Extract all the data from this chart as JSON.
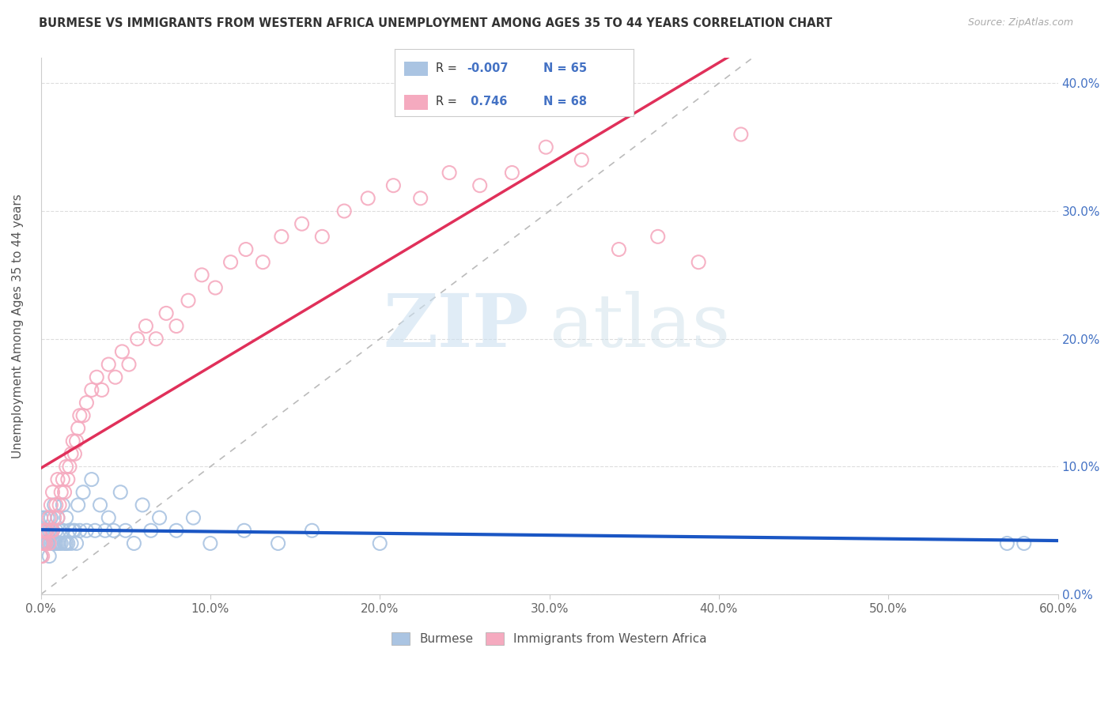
{
  "title": "BURMESE VS IMMIGRANTS FROM WESTERN AFRICA UNEMPLOYMENT AMONG AGES 35 TO 44 YEARS CORRELATION CHART",
  "source": "Source: ZipAtlas.com",
  "ylabel_label": "Unemployment Among Ages 35 to 44 years",
  "legend_labels": [
    "Burmese",
    "Immigrants from Western Africa"
  ],
  "legend_R": [
    -0.007,
    0.746
  ],
  "legend_N": [
    65,
    68
  ],
  "burmese_color": "#aac4e2",
  "western_africa_color": "#f5aabf",
  "burmese_line_color": "#1a56c4",
  "western_africa_line_color": "#e0305a",
  "ref_line_color": "#bbbbbb",
  "background_color": "#ffffff",
  "watermark_zip": "ZIP",
  "watermark_atlas": "atlas",
  "xlim": [
    0.0,
    0.6
  ],
  "ylim": [
    0.0,
    0.42
  ],
  "xtick_vals": [
    0.0,
    0.1,
    0.2,
    0.3,
    0.4,
    0.5,
    0.6
  ],
  "ytick_vals": [
    0.0,
    0.1,
    0.2,
    0.3,
    0.4
  ],
  "burmese_x": [
    0.0,
    0.0,
    0.0,
    0.0,
    0.0,
    0.001,
    0.001,
    0.002,
    0.002,
    0.003,
    0.003,
    0.004,
    0.004,
    0.005,
    0.005,
    0.005,
    0.006,
    0.006,
    0.007,
    0.007,
    0.008,
    0.008,
    0.009,
    0.009,
    0.01,
    0.01,
    0.011,
    0.011,
    0.012,
    0.013,
    0.013,
    0.014,
    0.015,
    0.015,
    0.016,
    0.017,
    0.018,
    0.019,
    0.02,
    0.021,
    0.022,
    0.023,
    0.025,
    0.027,
    0.03,
    0.032,
    0.035,
    0.038,
    0.04,
    0.043,
    0.047,
    0.05,
    0.055,
    0.06,
    0.065,
    0.07,
    0.08,
    0.09,
    0.1,
    0.12,
    0.14,
    0.16,
    0.2,
    0.57,
    0.58
  ],
  "burmese_y": [
    0.03,
    0.04,
    0.04,
    0.05,
    0.06,
    0.04,
    0.05,
    0.04,
    0.06,
    0.04,
    0.05,
    0.04,
    0.06,
    0.03,
    0.04,
    0.05,
    0.04,
    0.06,
    0.04,
    0.05,
    0.04,
    0.07,
    0.04,
    0.05,
    0.04,
    0.06,
    0.04,
    0.05,
    0.04,
    0.05,
    0.07,
    0.04,
    0.04,
    0.06,
    0.04,
    0.05,
    0.04,
    0.05,
    0.05,
    0.04,
    0.07,
    0.05,
    0.08,
    0.05,
    0.09,
    0.05,
    0.07,
    0.05,
    0.06,
    0.05,
    0.08,
    0.05,
    0.04,
    0.07,
    0.05,
    0.06,
    0.05,
    0.06,
    0.04,
    0.05,
    0.04,
    0.05,
    0.04,
    0.04,
    0.04
  ],
  "western_x": [
    0.0,
    0.0,
    0.001,
    0.001,
    0.002,
    0.002,
    0.003,
    0.003,
    0.004,
    0.005,
    0.005,
    0.006,
    0.006,
    0.007,
    0.007,
    0.008,
    0.009,
    0.01,
    0.01,
    0.011,
    0.012,
    0.013,
    0.014,
    0.015,
    0.016,
    0.017,
    0.018,
    0.019,
    0.02,
    0.021,
    0.022,
    0.023,
    0.025,
    0.027,
    0.03,
    0.033,
    0.036,
    0.04,
    0.044,
    0.048,
    0.052,
    0.057,
    0.062,
    0.068,
    0.074,
    0.08,
    0.087,
    0.095,
    0.103,
    0.112,
    0.121,
    0.131,
    0.142,
    0.154,
    0.166,
    0.179,
    0.193,
    0.208,
    0.224,
    0.241,
    0.259,
    0.278,
    0.298,
    0.319,
    0.341,
    0.364,
    0.388,
    0.413
  ],
  "western_y": [
    0.03,
    0.04,
    0.03,
    0.04,
    0.04,
    0.05,
    0.04,
    0.05,
    0.05,
    0.04,
    0.06,
    0.05,
    0.07,
    0.05,
    0.08,
    0.06,
    0.07,
    0.06,
    0.09,
    0.07,
    0.08,
    0.09,
    0.08,
    0.1,
    0.09,
    0.1,
    0.11,
    0.12,
    0.11,
    0.12,
    0.13,
    0.14,
    0.14,
    0.15,
    0.16,
    0.17,
    0.16,
    0.18,
    0.17,
    0.19,
    0.18,
    0.2,
    0.21,
    0.2,
    0.22,
    0.21,
    0.23,
    0.25,
    0.24,
    0.26,
    0.27,
    0.26,
    0.28,
    0.29,
    0.28,
    0.3,
    0.31,
    0.32,
    0.31,
    0.33,
    0.32,
    0.33,
    0.35,
    0.34,
    0.27,
    0.28,
    0.26,
    0.36
  ]
}
